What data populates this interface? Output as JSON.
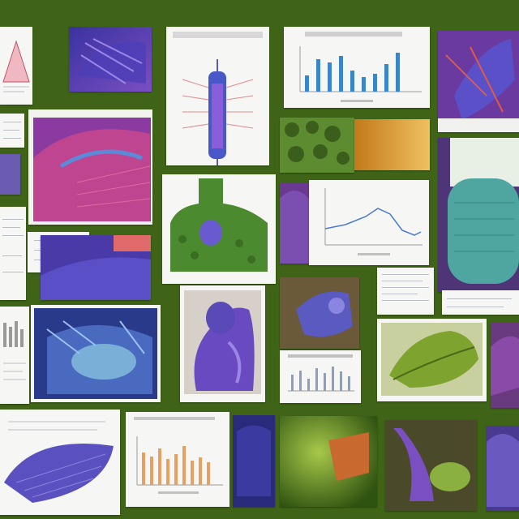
{
  "board": {
    "background": "#3f6417",
    "tiles": [
      {
        "name": "diagram-triangle-tile",
        "style": "paper"
      },
      {
        "name": "purple-specimen-tile",
        "style": "photo"
      },
      {
        "name": "spine-diagram-tile",
        "style": "paper"
      },
      {
        "name": "bar-chart-tile",
        "style": "paper"
      },
      {
        "name": "insect-collage-tile",
        "style": "photo"
      },
      {
        "name": "green-texture-tile",
        "style": "photo"
      },
      {
        "name": "amber-gradient-tile",
        "style": "photo"
      },
      {
        "name": "magenta-tissue-tile",
        "style": "photo"
      },
      {
        "name": "green-organ-diagram-tile",
        "style": "paper"
      },
      {
        "name": "line-chart-tile",
        "style": "paper"
      },
      {
        "name": "teal-leaf-tile",
        "style": "photo"
      },
      {
        "name": "blue-anatomy-tile",
        "style": "photo"
      },
      {
        "name": "violet-figure-tile",
        "style": "photo"
      },
      {
        "name": "small-bar-chart-tile",
        "style": "paper"
      },
      {
        "name": "green-leaf-tile",
        "style": "photo"
      },
      {
        "name": "purple-wing-tile",
        "style": "photo"
      },
      {
        "name": "orange-bar-chart-tile",
        "style": "paper"
      },
      {
        "name": "violet-flower-tile",
        "style": "photo"
      },
      {
        "name": "green-landscape-tile",
        "style": "photo"
      }
    ]
  },
  "colors": {
    "board_green": "#3f6417",
    "paper": "#f6f7f4",
    "purple": "#5b3fa8",
    "violet": "#7a4fc2",
    "blue": "#3f57b8",
    "teal": "#4fa6a0",
    "leaf_green": "#7fa32f",
    "amber": "#d89a2a",
    "magenta": "#b43c8a",
    "chart_blue": "#3a86c8",
    "chart_orange": "#e8a060"
  }
}
